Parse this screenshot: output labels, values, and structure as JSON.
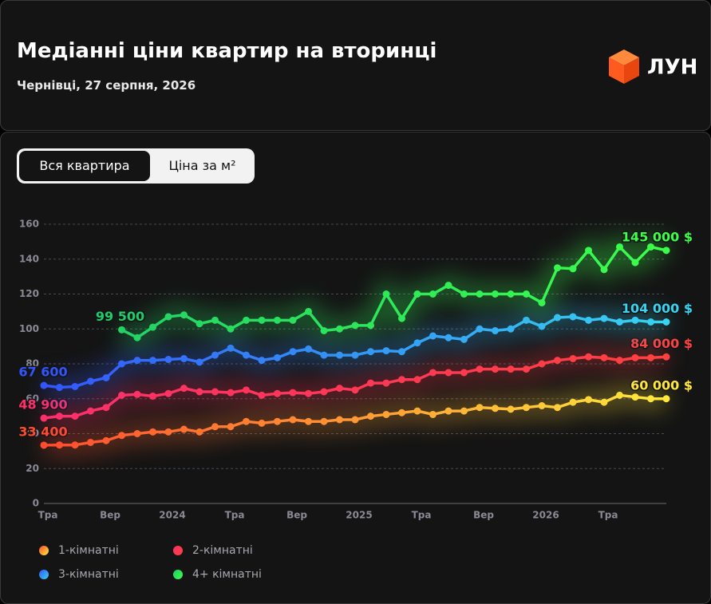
{
  "header": {
    "title": "Медіанні ціни квартир на вторинці",
    "subtitle": "Чернівці, 27 серпня, 2026",
    "logo": "ЛУН"
  },
  "toggle": {
    "options": [
      "Вся квартира",
      "Ціна за м²"
    ]
  },
  "chart_data": {
    "type": "line",
    "categories": [
      "Тра",
      null,
      null,
      null,
      "Вер",
      null,
      null,
      null,
      "2024",
      null,
      null,
      null,
      "Тра",
      null,
      null,
      null,
      "Вер",
      null,
      null,
      null,
      "2025",
      null,
      null,
      null,
      "Тра",
      null,
      null,
      null,
      "Вер",
      null,
      null,
      null,
      "2026",
      null,
      null,
      null,
      "Тра",
      null,
      null,
      null,
      null
    ],
    "ylim": [
      0,
      160
    ],
    "yticks": [
      0,
      20,
      40,
      60,
      80,
      100,
      120,
      140,
      160
    ],
    "grid": true,
    "series": [
      {
        "name": "1-кімнатні",
        "colors": [
          "#ff4d2e",
          "#ffe93a"
        ],
        "values": [
          33.4,
          33.5,
          33.5,
          35,
          36,
          39,
          40,
          41,
          41,
          42.5,
          41,
          44,
          44,
          47,
          46,
          47,
          48,
          47,
          47,
          48,
          48,
          50,
          51,
          52,
          53,
          51,
          53,
          53,
          55,
          54.5,
          54,
          55,
          56,
          55,
          58,
          59.5,
          58,
          62,
          61,
          60,
          60
        ],
        "value_labels": [
          "33 400",
          null,
          null,
          null,
          null,
          null,
          null,
          null,
          null,
          null,
          null,
          null,
          null,
          null,
          null,
          null,
          null,
          null,
          null,
          null,
          null,
          null,
          null,
          null,
          null,
          null,
          null,
          null,
          null,
          null,
          null,
          null,
          null,
          null,
          null,
          null,
          null,
          null,
          null,
          null,
          "60 000 $"
        ]
      },
      {
        "name": "2-кімнатні",
        "colors": [
          "#ff2f6a",
          "#ff4040"
        ],
        "values": [
          48.9,
          50,
          50,
          53,
          55,
          62,
          62.5,
          61.5,
          63,
          66,
          64,
          64,
          63.5,
          65,
          62,
          63,
          63.5,
          63,
          64,
          66,
          65,
          69,
          69,
          71,
          71,
          75,
          75,
          75,
          77,
          77,
          77,
          77,
          80,
          82,
          83,
          84,
          83.5,
          82,
          83.5,
          83.5,
          84
        ],
        "value_labels": [
          "48 900",
          null,
          null,
          null,
          null,
          null,
          null,
          null,
          null,
          null,
          null,
          null,
          null,
          null,
          null,
          null,
          null,
          null,
          null,
          null,
          null,
          null,
          null,
          null,
          null,
          null,
          null,
          null,
          null,
          null,
          null,
          null,
          null,
          null,
          null,
          null,
          null,
          null,
          null,
          null,
          "84 000 $"
        ]
      },
      {
        "name": "3-кімнатні",
        "colors": [
          "#3355ff",
          "#36d4f2"
        ],
        "values": [
          67.6,
          66.5,
          67,
          70,
          72,
          80,
          82,
          82,
          82.5,
          83,
          81,
          85,
          89,
          85,
          82,
          83.5,
          87,
          88.5,
          85,
          85,
          85,
          87,
          87.5,
          87,
          92,
          96,
          95,
          94,
          100,
          99,
          100,
          105,
          101.5,
          106.5,
          107,
          105,
          106,
          104,
          105,
          104,
          104
        ],
        "value_labels": [
          "67 600",
          null,
          null,
          null,
          null,
          null,
          null,
          null,
          null,
          null,
          null,
          null,
          null,
          null,
          null,
          null,
          null,
          null,
          null,
          null,
          null,
          null,
          null,
          null,
          null,
          null,
          null,
          null,
          null,
          null,
          null,
          null,
          null,
          null,
          null,
          null,
          null,
          null,
          null,
          null,
          "104 000 $"
        ]
      },
      {
        "name": "4+ кімнатні",
        "colors": [
          "#1fcc6a",
          "#3cff4a"
        ],
        "values": [
          null,
          null,
          null,
          null,
          null,
          99.5,
          95,
          101,
          107,
          108,
          103,
          105,
          100,
          105,
          105,
          105,
          105,
          110,
          99,
          100,
          102,
          102,
          120,
          106,
          120,
          120,
          125,
          120,
          120,
          120,
          120,
          120,
          115,
          135,
          134.5,
          145,
          134,
          147,
          138,
          147,
          145
        ],
        "value_labels": [
          null,
          null,
          null,
          null,
          null,
          "99 500",
          null,
          null,
          null,
          null,
          null,
          null,
          null,
          null,
          null,
          null,
          null,
          null,
          null,
          null,
          null,
          null,
          null,
          null,
          null,
          null,
          null,
          null,
          null,
          null,
          null,
          null,
          null,
          null,
          null,
          null,
          null,
          null,
          null,
          null,
          "145 000 $"
        ]
      }
    ]
  }
}
